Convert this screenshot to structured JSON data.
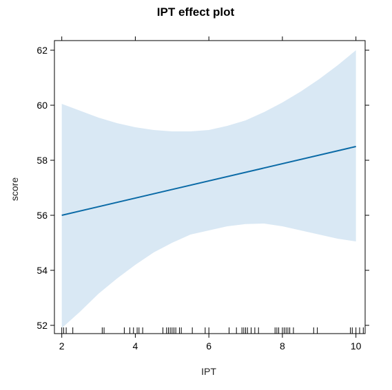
{
  "chart_data": {
    "type": "line",
    "title": "IPT effect plot",
    "xlabel": "IPT",
    "ylabel": "score",
    "xlim": [
      1.8,
      10.25
    ],
    "ylim": [
      51.7,
      62.35
    ],
    "x_ticks": [
      2,
      4,
      6,
      8,
      10
    ],
    "y_ticks": [
      52,
      54,
      56,
      58,
      60,
      62
    ],
    "grid": false,
    "legend": "none",
    "colors": {
      "line": "#0a6aa6",
      "band": "#d9e8f4",
      "frame": "#000000"
    },
    "series": [
      {
        "x": [
          2,
          10
        ],
        "y": [
          56.0,
          58.5
        ]
      }
    ],
    "confidence_band": {
      "x": [
        2.0,
        2.5,
        3.0,
        3.5,
        4.0,
        4.5,
        5.0,
        5.5,
        6.0,
        6.5,
        7.0,
        7.5,
        8.0,
        8.5,
        9.0,
        9.5,
        10.0
      ],
      "lower": [
        51.9,
        52.5,
        53.15,
        53.7,
        54.2,
        54.65,
        55.0,
        55.3,
        55.45,
        55.6,
        55.68,
        55.7,
        55.6,
        55.45,
        55.3,
        55.15,
        55.05
      ],
      "upper": [
        60.05,
        59.8,
        59.55,
        59.35,
        59.2,
        59.1,
        59.05,
        59.05,
        59.1,
        59.25,
        59.45,
        59.75,
        60.1,
        60.5,
        60.95,
        61.45,
        62.0
      ]
    },
    "rug_x": [
      2.0,
      2.05,
      2.12,
      2.3,
      3.1,
      3.15,
      3.7,
      3.85,
      3.95,
      4.05,
      4.1,
      4.2,
      4.75,
      4.85,
      4.9,
      4.95,
      5.0,
      5.05,
      5.1,
      5.2,
      5.25,
      5.55,
      5.9,
      6.0,
      6.55,
      6.75,
      6.9,
      6.95,
      7.0,
      7.05,
      7.15,
      7.25,
      7.35,
      7.8,
      7.85,
      7.9,
      8.0,
      8.05,
      8.1,
      8.15,
      8.2,
      8.3,
      8.85,
      8.95,
      9.85,
      9.9,
      10.0,
      10.1,
      10.2
    ]
  }
}
